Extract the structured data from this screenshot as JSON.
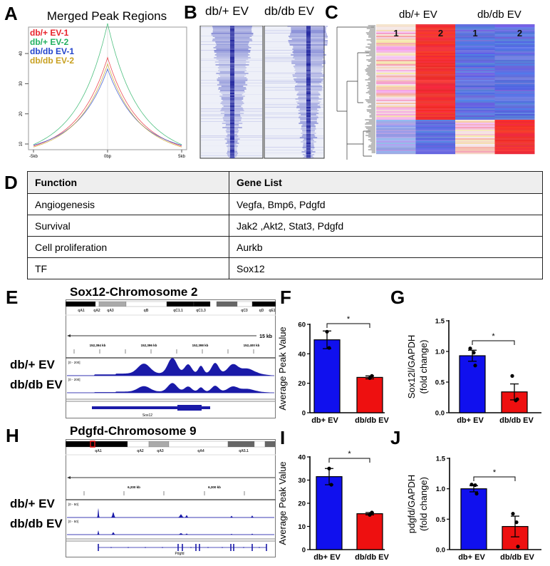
{
  "panels": {
    "A": "A",
    "B": "B",
    "C": "C",
    "D": "D",
    "E": "E",
    "F": "F",
    "G": "G",
    "H": "H",
    "I": "I",
    "J": "J"
  },
  "colors": {
    "bar_control": "#1010ee",
    "bar_diabetic": "#ee1010",
    "igv_signal": "#1a1aa8",
    "heat_red": "#ee2a2a",
    "heat_blue": "#3345d8"
  },
  "chart_data": [
    {
      "id": "A",
      "type": "line",
      "title": "Merged Peak Regions",
      "xlabel": "",
      "ylabel": "",
      "x_ticks": [
        "-5kb",
        "0bp",
        "5kb"
      ],
      "y_ticks": [
        10,
        20,
        30,
        40
      ],
      "xlim": [
        -5,
        5
      ],
      "ylim": [
        8,
        50
      ],
      "legend_position": "top-left",
      "grid": false,
      "series": [
        {
          "name": "db/+ EV-1",
          "color": "#e8222a",
          "peak": 36.5,
          "edge": 9.3
        },
        {
          "name": "db/+ EV-2",
          "color": "#22b060",
          "peak": 47,
          "edge": 9.8
        },
        {
          "name": "db/db EV-1",
          "color": "#2244cc",
          "peak": 33,
          "edge": 9.6
        },
        {
          "name": "db/db EV-2",
          "color": "#c8a020",
          "peak": 34.5,
          "edge": 9.0
        }
      ]
    },
    {
      "id": "B",
      "type": "heatmap",
      "columns": [
        "db/+ EV",
        "db/db EV"
      ]
    },
    {
      "id": "C",
      "type": "heatmap",
      "group_labels": [
        "db/+ EV",
        "db/db EV"
      ],
      "column_labels": [
        "1",
        "2",
        "1",
        "2"
      ],
      "cluster_split_fraction": 0.73,
      "top_cluster": [
        "light-red",
        "red",
        "blue",
        "blue"
      ],
      "bottom_cluster": [
        "light-blue",
        "blue",
        "light-red",
        "red"
      ]
    },
    {
      "id": "F",
      "type": "bar",
      "categories": [
        "db+ EV",
        "db/db EV"
      ],
      "values": [
        49.5,
        24
      ],
      "errors": [
        6,
        1
      ],
      "points": [
        [
          55,
          44
        ],
        [
          23.5,
          25
        ]
      ],
      "ylabel": "Average Peak Value",
      "ylim": [
        0,
        60
      ],
      "y_ticks": [
        0,
        20,
        40,
        60
      ],
      "significance": "*"
    },
    {
      "id": "G",
      "type": "bar",
      "categories": [
        "db+ EV",
        "db/db EV"
      ],
      "values": [
        0.93,
        0.34
      ],
      "errors": [
        0.09,
        0.13
      ],
      "points": [
        [
          1.05,
          0.98,
          0.77
        ],
        [
          0.6,
          0.2,
          0.22
        ]
      ],
      "ylabel": "Sox12l/GAPDH\n(fold change)",
      "ylim": [
        0,
        1.5
      ],
      "y_ticks": [
        "0.0",
        "0.5",
        "1.0",
        "1.5"
      ],
      "significance": "*"
    },
    {
      "id": "I",
      "type": "bar",
      "categories": [
        "db+ EV",
        "db/db EV"
      ],
      "values": [
        31.5,
        15.5
      ],
      "errors": [
        3.5,
        0.5
      ],
      "points": [
        [
          35,
          28
        ],
        [
          15,
          16
        ]
      ],
      "ylabel": "Average Peak Value",
      "ylim": [
        0,
        40
      ],
      "y_ticks": [
        0,
        10,
        20,
        30,
        40
      ],
      "significance": "*"
    },
    {
      "id": "J",
      "type": "bar",
      "categories": [
        "db+ EV",
        "db/db EV"
      ],
      "values": [
        1.0,
        0.38
      ],
      "errors": [
        0.05,
        0.17
      ],
      "points": [
        [
          1.07,
          1.06,
          0.92
        ],
        [
          0.59,
          0.45,
          0.05
        ]
      ],
      "ylabel": "pdgfd/GAPDH\n(fold change)",
      "ylim": [
        0,
        1.5
      ],
      "y_ticks": [
        "0.0",
        "0.5",
        "1.0",
        "1.5"
      ],
      "significance": "*"
    }
  ],
  "table": {
    "headers": [
      "Function",
      "Gene List"
    ],
    "rows": [
      [
        "Angiogenesis",
        "Vegfa, Bmp6, Pdgfd"
      ],
      [
        "Survival",
        "Jak2 ,Akt2, Stat3, Pdgfd"
      ],
      [
        "Cell proliferation",
        "Aurkb"
      ],
      [
        "TF",
        "Sox12"
      ]
    ]
  },
  "igv_E": {
    "title": "Sox12-Chromosome 2",
    "bands": [
      "qA1",
      "qA2",
      "qA3",
      "qB",
      "qC1.1",
      "qC1.3",
      "qC3",
      "qD",
      "qE1"
    ],
    "scale_label": "15 kb",
    "ticks": [
      "152,394 kb",
      "152,396 kb",
      "152,398 kb",
      "152,400 kb"
    ],
    "track_range": "[0 - 200]",
    "tracks": [
      "db/+ EV",
      "db/db EV"
    ],
    "gene": "Sox12"
  },
  "igv_H": {
    "title": "Pdgfd-Chromosome 9",
    "bands": [
      "qA1",
      "qA2",
      "qA3",
      "qA4",
      "qA5.1"
    ],
    "ticks": [
      "6,200 kb",
      "6,300 kb"
    ],
    "track_range": "[0 - 50]",
    "tracks": [
      "db/+ EV",
      "db/db EV"
    ],
    "gene": "Pdgfd"
  }
}
